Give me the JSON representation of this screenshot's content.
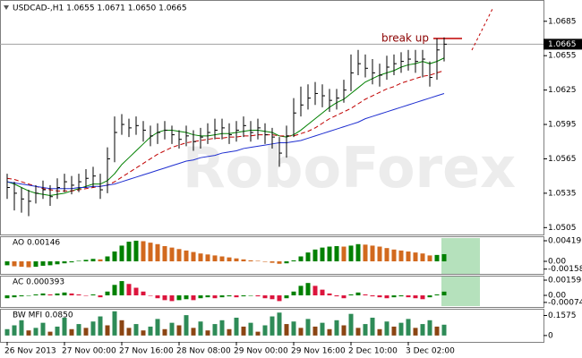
{
  "chart_data": [
    {
      "type": "ohlc",
      "title": "USDCAD-,H1  1.0655 1.0671 1.0650 1.0665",
      "annotation": "break up",
      "watermark": "RoboForex",
      "last_price": 1.0665,
      "categories": [
        "26 Nov 2013",
        null,
        null,
        null,
        null,
        null,
        null,
        null,
        "27 Nov 00:00",
        null,
        null,
        null,
        null,
        null,
        null,
        null,
        "27 Nov 16:00",
        null,
        null,
        null,
        null,
        null,
        null,
        null,
        "28 Nov 08:00",
        null,
        null,
        null,
        null,
        null,
        null,
        null,
        "29 Nov 00:00",
        null,
        null,
        null,
        null,
        null,
        null,
        null,
        "29 Nov 16:00",
        null,
        null,
        null,
        null,
        null,
        null,
        null,
        "2 Dec 10:00",
        null,
        null,
        null,
        null,
        null,
        null,
        null,
        "3 Dec 02:00",
        null,
        null,
        null,
        null,
        null
      ],
      "high": [
        1.0552,
        1.0545,
        1.054,
        1.0538,
        1.0542,
        1.0546,
        1.0542,
        1.0548,
        1.0552,
        1.055,
        1.0552,
        1.0556,
        1.0558,
        1.0552,
        1.0575,
        1.0602,
        1.0604,
        1.06,
        1.0602,
        1.0598,
        1.0594,
        1.0596,
        1.0598,
        1.0594,
        1.059,
        1.0594,
        1.059,
        1.0592,
        1.0596,
        1.06,
        1.06,
        1.0596,
        1.0598,
        1.0602,
        1.0598,
        1.06,
        1.0596,
        1.0592,
        1.0584,
        1.0594,
        1.0618,
        1.0628,
        1.063,
        1.0632,
        1.063,
        1.0626,
        1.0626,
        1.0634,
        1.0656,
        1.066,
        1.0656,
        1.0652,
        1.0648,
        1.0655,
        1.0656,
        1.0658,
        1.066,
        1.066,
        1.066,
        1.065,
        1.067,
        1.0671
      ],
      "low": [
        1.053,
        1.052,
        1.0518,
        1.0515,
        1.0526,
        1.053,
        1.0524,
        1.053,
        1.0536,
        1.0534,
        1.0536,
        1.054,
        1.054,
        1.053,
        1.0535,
        1.0562,
        1.0586,
        1.0584,
        1.0586,
        1.058,
        1.0576,
        1.0578,
        1.0582,
        1.0578,
        1.0574,
        1.0576,
        1.0572,
        1.0574,
        1.0578,
        1.0582,
        1.0582,
        1.0578,
        1.058,
        1.0584,
        1.058,
        1.0582,
        1.0578,
        1.0574,
        1.0558,
        1.0566,
        1.0584,
        1.0602,
        1.0608,
        1.0612,
        1.061,
        1.0606,
        1.0608,
        1.0614,
        1.0624,
        1.0638,
        1.0636,
        1.063,
        1.0628,
        1.0634,
        1.0638,
        1.064,
        1.0642,
        1.064,
        1.0636,
        1.0628,
        1.0634,
        1.065
      ],
      "close": [
        1.054,
        1.0535,
        1.053,
        1.0528,
        1.0535,
        1.0538,
        1.0532,
        1.054,
        1.0545,
        1.0542,
        1.0545,
        1.0548,
        1.055,
        1.0538,
        1.0565,
        1.0588,
        1.0595,
        1.0592,
        1.0594,
        1.059,
        1.0585,
        1.0588,
        1.059,
        1.0586,
        1.0582,
        1.0585,
        1.058,
        1.0584,
        1.0588,
        1.059,
        1.0592,
        1.0586,
        1.059,
        1.0594,
        1.0588,
        1.0592,
        1.0586,
        1.0584,
        1.057,
        1.0585,
        1.0605,
        1.0612,
        1.0618,
        1.0622,
        1.062,
        1.0616,
        1.0618,
        1.0625,
        1.064,
        1.0648,
        1.0644,
        1.064,
        1.0638,
        1.0645,
        1.0648,
        1.065,
        1.0652,
        1.065,
        1.0652,
        1.0636,
        1.066,
        1.0665
      ],
      "ma_lines": [
        {
          "color": "#008000",
          "dashed": false,
          "values": [
            1.0545,
            1.0543,
            1.054,
            1.0537,
            1.0535,
            1.0534,
            1.0533,
            1.0534,
            1.0535,
            1.0537,
            1.0539,
            1.0541,
            1.0543,
            1.0543,
            1.0546,
            1.0552,
            1.056,
            1.0566,
            1.0572,
            1.0578,
            1.0584,
            1.0588,
            1.059,
            1.059,
            1.0589,
            1.0588,
            1.0586,
            1.0585,
            1.0585,
            1.0586,
            1.0587,
            1.0587,
            1.0588,
            1.0589,
            1.059,
            1.059,
            1.0589,
            1.0588,
            1.0585,
            1.0584,
            1.0586,
            1.059,
            1.0595,
            1.06,
            1.0605,
            1.061,
            1.0614,
            1.0617,
            1.0622,
            1.0627,
            1.0632,
            1.0635,
            1.0638,
            1.064,
            1.0642,
            1.0645,
            1.0647,
            1.0648,
            1.065,
            1.0648,
            1.065,
            1.0653
          ]
        },
        {
          "color": "#c00000",
          "dashed": true,
          "values": [
            1.0548,
            1.0547,
            1.0545,
            1.0543,
            1.0541,
            1.0539,
            1.0538,
            1.0537,
            1.0537,
            1.0537,
            1.0538,
            1.0539,
            1.054,
            1.0541,
            1.0542,
            1.0545,
            1.0549,
            1.0553,
            1.0557,
            1.0561,
            1.0565,
            1.0569,
            1.0572,
            1.0575,
            1.0577,
            1.0579,
            1.058,
            1.0581,
            1.0582,
            1.0583,
            1.0583,
            1.0584,
            1.0584,
            1.0585,
            1.0585,
            1.0586,
            1.0586,
            1.0586,
            1.0585,
            1.0585,
            1.0585,
            1.0587,
            1.0589,
            1.0592,
            1.0596,
            1.06,
            1.0603,
            1.0606,
            1.0609,
            1.0613,
            1.0617,
            1.062,
            1.0623,
            1.0626,
            1.0628,
            1.0631,
            1.0633,
            1.0635,
            1.0637,
            1.0638,
            1.064,
            1.0642
          ]
        },
        {
          "color": "#1f2fd0",
          "dashed": false,
          "values": [
            1.0545,
            1.0544,
            1.0543,
            1.0542,
            1.0541,
            1.054,
            1.0539,
            1.0539,
            1.0539,
            1.0539,
            1.054,
            1.054,
            1.0541,
            1.0541,
            1.0542,
            1.0543,
            1.0545,
            1.0547,
            1.0549,
            1.0551,
            1.0553,
            1.0555,
            1.0557,
            1.0559,
            1.0561,
            1.0563,
            1.0564,
            1.0566,
            1.0567,
            1.0568,
            1.057,
            1.0571,
            1.0572,
            1.0574,
            1.0575,
            1.0576,
            1.0577,
            1.0578,
            1.0579,
            1.0579,
            1.058,
            1.0581,
            1.0583,
            1.0585,
            1.0587,
            1.0589,
            1.0591,
            1.0593,
            1.0595,
            1.0597,
            1.06,
            1.0602,
            1.0604,
            1.0606,
            1.0608,
            1.061,
            1.0612,
            1.0614,
            1.0616,
            1.0618,
            1.062,
            1.0622
          ]
        }
      ],
      "ylim": [
        1.0499,
        1.0702
      ],
      "yticks": [
        1.0505,
        1.0535,
        1.0565,
        1.0595,
        1.0625,
        1.0655,
        1.0685
      ]
    },
    {
      "type": "bar",
      "title": "AO 0.00146",
      "up_color": "#008000",
      "down_color": "#d2691e",
      "values": [
        -0.0008,
        -0.001,
        -0.0011,
        -0.0012,
        -0.0011,
        -0.0009,
        -0.0008,
        -0.0006,
        -0.0004,
        -0.0002,
        0.0001,
        0.0003,
        0.0005,
        0.0004,
        0.001,
        0.002,
        0.0032,
        0.004,
        0.0042,
        0.0041,
        0.0038,
        0.0035,
        0.0031,
        0.0028,
        0.0025,
        0.0022,
        0.0019,
        0.0016,
        0.0014,
        0.0012,
        0.001,
        0.0008,
        0.0006,
        0.0004,
        0.0002,
        0.0001,
        -0.0001,
        -0.0003,
        -0.0005,
        -0.0004,
        0.0002,
        0.001,
        0.0018,
        0.0024,
        0.0028,
        0.003,
        0.0031,
        0.003,
        0.0032,
        0.0035,
        0.0034,
        0.0032,
        0.003,
        0.0027,
        0.0024,
        0.0022,
        0.002,
        0.0018,
        0.0016,
        0.0012,
        0.0013,
        0.00146
      ],
      "ylim": [
        -0.00255,
        0.0051
      ],
      "yticks": [
        0.00419,
        {
          "value": 0,
          "label": "0.00"
        },
        -0.00158
      ]
    },
    {
      "type": "bar",
      "title": "AC 0.000393",
      "up_color": "#008000",
      "down_color": "#dc143c",
      "values": [
        -0.0003,
        -0.0002,
        -0.0001,
        0.0,
        0.0001,
        0.0002,
        0.0001,
        0.0002,
        0.0003,
        0.0002,
        0.0001,
        0.0,
        0.0001,
        -0.0002,
        0.0004,
        0.0011,
        0.0015,
        0.0012,
        0.0008,
        0.0004,
        0.0,
        -0.0003,
        -0.0005,
        -0.0006,
        -0.0005,
        -0.0004,
        -0.0005,
        -0.0003,
        -0.0002,
        -0.0003,
        -0.0002,
        -0.0001,
        -0.0002,
        -0.0001,
        0.0,
        -0.0001,
        -0.0003,
        -0.0004,
        -0.0006,
        -0.0003,
        0.0004,
        0.001,
        0.0013,
        0.001,
        0.0006,
        0.0002,
        -0.0001,
        -0.0003,
        0.0001,
        0.0003,
        0.0001,
        -0.0001,
        -0.0002,
        -0.0003,
        -0.0002,
        -0.0001,
        -0.0002,
        -0.0003,
        -0.0004,
        -0.0002,
        0.0001,
        0.000393
      ],
      "ylim": [
        -0.00122,
        0.00207
      ],
      "yticks": [
        0.001598,
        {
          "value": 0,
          "label": "0.00"
        },
        -0.00074
      ]
    },
    {
      "type": "bar",
      "title": "BW MFI 0.0850",
      "up_color": "#2e8b57",
      "down_color": "#8b4513",
      "values": [
        0.05,
        0.08,
        0.12,
        0.04,
        0.06,
        0.1,
        0.03,
        0.07,
        0.14,
        0.05,
        0.09,
        0.06,
        0.11,
        0.15,
        0.08,
        0.19,
        0.12,
        0.06,
        0.09,
        0.04,
        0.07,
        0.13,
        0.05,
        0.1,
        0.08,
        0.16,
        0.06,
        0.11,
        0.04,
        0.09,
        0.12,
        0.05,
        0.14,
        0.07,
        0.1,
        0.03,
        0.08,
        0.15,
        0.18,
        0.09,
        0.11,
        0.06,
        0.13,
        0.07,
        0.1,
        0.05,
        0.12,
        0.08,
        0.17,
        0.06,
        0.09,
        0.14,
        0.05,
        0.11,
        0.07,
        0.1,
        0.13,
        0.06,
        0.09,
        0.12,
        0.07,
        0.085
      ],
      "ylim": [
        -0.05,
        0.21
      ],
      "yticks": [
        0.1575,
        0
      ]
    }
  ]
}
